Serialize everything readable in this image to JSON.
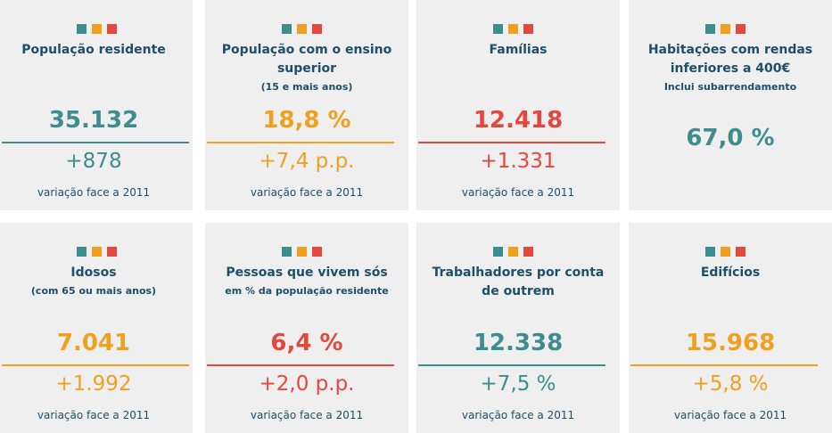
{
  "cards": [
    {
      "title": "População residente",
      "value": "35.132",
      "change": "+878",
      "footer": "variação face a 2011",
      "color": "#3e8d8e"
    },
    {
      "title": "População com o ensino superior",
      "subtitle": "(15 e mais anos)",
      "value": "18,8 %",
      "change": "+7,4 p.p.",
      "footer": "variação face a 2011",
      "color": "#efa01f"
    },
    {
      "title": "Famílias",
      "value": "12.418",
      "change": "+1.331",
      "footer": "variação face a 2011",
      "color": "#e2483e"
    },
    {
      "title": "Habitações com rendas inferiores a 400€",
      "subtitle": "Inclui subarrendamento",
      "value": "67,0 %",
      "color": "#3e8d8e"
    },
    {
      "title": "Idosos",
      "subtitle": "(com 65 ou mais anos)",
      "value": "7.041",
      "change": "+1.992",
      "footer": "variação face a 2011",
      "color": "#efa01f"
    },
    {
      "title": "Pessoas que vivem sós",
      "subtitle": "em % da população residente",
      "value": "6,4 %",
      "change": "+2,0 p.p.",
      "footer": "variação face a 2011",
      "color": "#e2483e"
    },
    {
      "title": "Trabalhadores por conta de outrem",
      "value": "12.338",
      "change": "+7,5 %",
      "footer": "variação face a 2011",
      "color": "#3e8d8e"
    },
    {
      "title": "Edifícios",
      "value": "15.968",
      "change": "+5,8 %",
      "footer": "variação face a 2011",
      "color": "#efa01f"
    }
  ]
}
